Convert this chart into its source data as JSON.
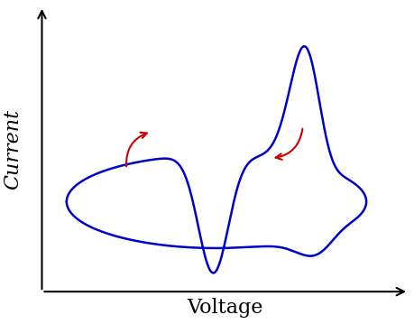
{
  "title": "",
  "xlabel": "Voltage",
  "ylabel": "Current",
  "curve_color": "#0000cc",
  "arrow_color": "#cc0000",
  "background_color": "#ffffff",
  "xlabel_fontsize": 16,
  "ylabel_fontsize": 16,
  "ylabel_style": "italic"
}
